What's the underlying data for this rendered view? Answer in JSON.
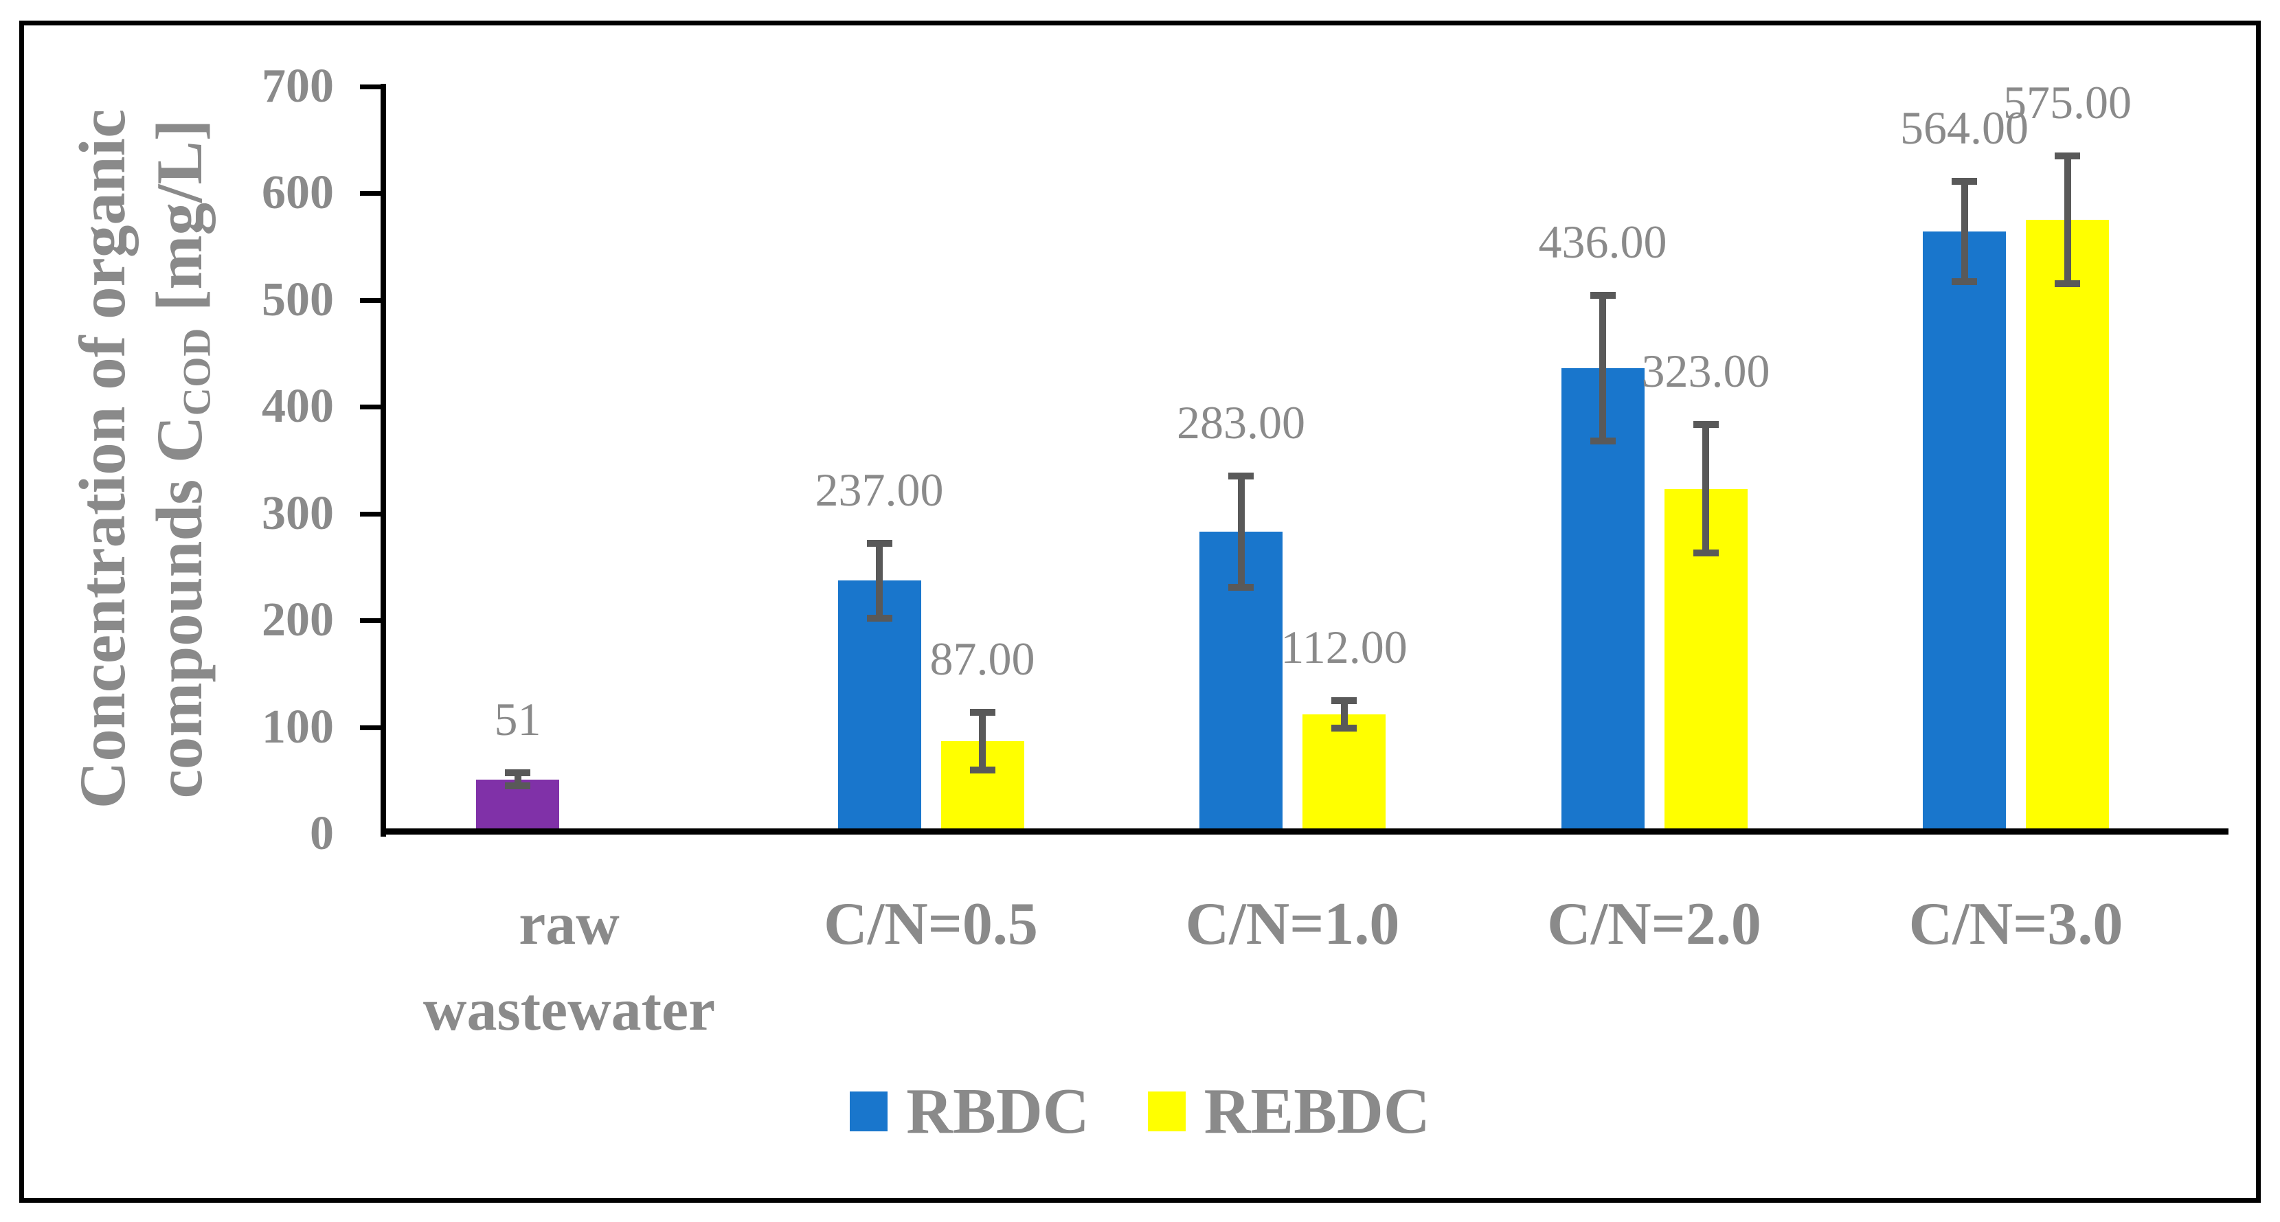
{
  "chart_data": {
    "type": "bar",
    "title": "",
    "categories": [
      "raw wastewater",
      "C/N=0.5",
      "C/N=1.0",
      "C/N=2.0",
      "C/N=3.0"
    ],
    "series": [
      {
        "name": "RBDC",
        "color": "#1976CC",
        "values": [
          51,
          237,
          283,
          436,
          564
        ],
        "errors": [
          6,
          35,
          52,
          68,
          47
        ],
        "data_labels": [
          "51",
          "237.00",
          "283.00",
          "436.00",
          "564.00"
        ],
        "point_colors": {
          "0": "#8031A8"
        }
      },
      {
        "name": "REBDC",
        "color": "#FFFF00",
        "values": [
          null,
          87,
          112,
          323,
          575
        ],
        "errors": [
          null,
          27,
          13,
          60,
          60
        ],
        "data_labels": [
          "",
          "87.00",
          "112.00",
          "323.00",
          "575.00"
        ],
        "point_colors": {}
      }
    ],
    "ylabel_line1": "Concentration of organic",
    "ylabel_line2_pre": "compounds C",
    "ylabel_sub": "COD",
    "ylabel_line2_post": " [mg/L]",
    "xlabel": "",
    "ylim": [
      0,
      700
    ],
    "ytick_step": 100,
    "yticks": [
      "0",
      "100",
      "200",
      "300",
      "400",
      "500",
      "600",
      "700"
    ],
    "grid": false,
    "legend_position": "bottom",
    "legend": [
      "RBDC",
      "REBDC"
    ],
    "colors": {
      "axis": "#000000",
      "label_text": "#8A8A8A",
      "error_bar": "#595959",
      "background": "#FFFFFF",
      "frame_border": "#000000"
    }
  }
}
